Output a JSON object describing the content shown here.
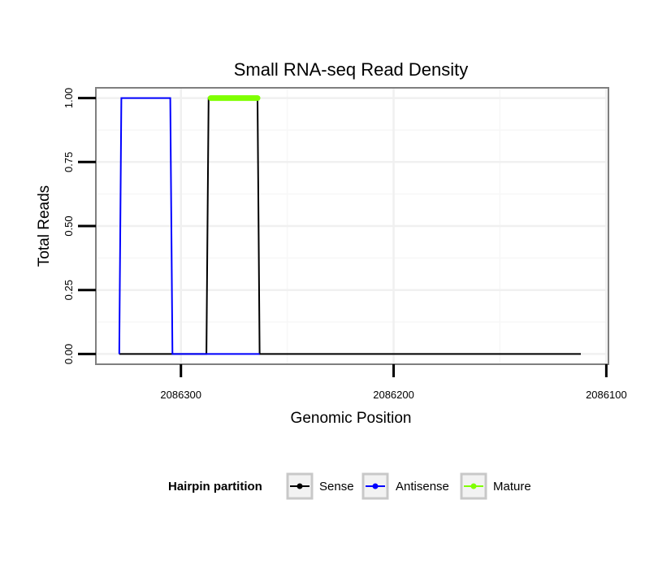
{
  "chart_data": {
    "type": "line",
    "title": "Small RNA-seq Read Density",
    "xlabel": "Genomic Position",
    "ylabel": "Total Reads",
    "x_reversed": true,
    "xlim": [
      2086340,
      2086099
    ],
    "ylim": [
      -0.04,
      1.04
    ],
    "x_ticks": [
      2086300,
      2086200,
      2086100
    ],
    "x_tick_labels": [
      "2086300",
      "2086200",
      "2086100"
    ],
    "y_ticks": [
      0,
      0.25,
      0.5,
      0.75,
      1
    ],
    "y_tick_labels": [
      "0.00",
      "0.25",
      "0.50",
      "0.75",
      "1.00"
    ],
    "grid": true,
    "legend": {
      "title": "Hairpin partition",
      "position": "bottom",
      "entries": [
        {
          "name": "Sense",
          "color": "#000000"
        },
        {
          "name": "Antisense",
          "color": "#0000ff"
        },
        {
          "name": "Mature",
          "color": "#7fff00"
        }
      ]
    },
    "series": [
      {
        "name": "Sense",
        "color": "#000000",
        "points": [
          [
            2086329,
            0
          ],
          [
            2086288,
            0
          ],
          [
            2086287,
            1
          ],
          [
            2086264,
            1
          ],
          [
            2086263,
            0
          ],
          [
            2086112,
            0
          ]
        ]
      },
      {
        "name": "Antisense",
        "color": "#0000ff",
        "points": [
          [
            2086329,
            0
          ],
          [
            2086328,
            1
          ],
          [
            2086305,
            1
          ],
          [
            2086304,
            0
          ],
          [
            2086263,
            0
          ]
        ]
      },
      {
        "name": "Mature",
        "color": "#7fff00",
        "points": [
          [
            2086286,
            1
          ],
          [
            2086264,
            1
          ]
        ]
      }
    ]
  }
}
